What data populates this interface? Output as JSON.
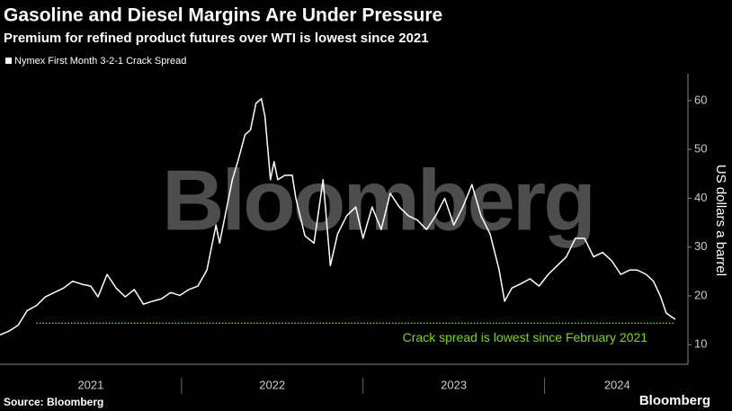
{
  "chart_data": {
    "type": "line",
    "title": "Gasoline and Diesel Margins Are Under Pressure",
    "subtitle": "Premium for refined product futures over WTI is lowest since 2021",
    "y_label": "US dollars a barrel",
    "watermark": "Bloomberg",
    "source": "Source: Bloomberg",
    "logo": "Bloomberg",
    "annotation": {
      "text": "Crack spread is lowest since February 2021",
      "value": 14.4,
      "xrange": [
        2021.2,
        2024.72
      ],
      "color": "#7ed321"
    },
    "xlim": [
      2021,
      2024.79
    ],
    "xticks": [
      {
        "value": 2021.5,
        "label": "2021"
      },
      {
        "value": 2022.5,
        "label": "2022"
      },
      {
        "value": 2023.5,
        "label": "2023"
      },
      {
        "value": 2024.4,
        "label": "2024"
      }
    ],
    "xminorticks": [
      2022,
      2023,
      2024
    ],
    "ylim": [
      6,
      65.5
    ],
    "yticks": [
      10,
      20,
      30,
      40,
      50,
      60
    ],
    "x": [
      2021.0,
      2021.05,
      2021.1,
      2021.15,
      2021.2,
      2021.25,
      2021.3,
      2021.35,
      2021.4,
      2021.45,
      2021.5,
      2021.54,
      2021.59,
      2021.64,
      2021.69,
      2021.74,
      2021.79,
      2021.84,
      2021.89,
      2021.94,
      2021.99,
      2022.04,
      2022.09,
      2022.14,
      2022.19,
      2022.21,
      2022.24,
      2022.28,
      2022.31,
      2022.35,
      2022.38,
      2022.41,
      2022.44,
      2022.46,
      2022.49,
      2022.51,
      2022.53,
      2022.57,
      2022.61,
      2022.63,
      2022.68,
      2022.73,
      2022.78,
      2022.82,
      2022.86,
      2022.91,
      2022.96,
      2023.0,
      2023.05,
      2023.1,
      2023.15,
      2023.2,
      2023.25,
      2023.3,
      2023.35,
      2023.4,
      2023.45,
      2023.5,
      2023.55,
      2023.6,
      2023.65,
      2023.7,
      2023.75,
      2023.78,
      2023.82,
      2023.87,
      2023.92,
      2023.97,
      2024.02,
      2024.07,
      2024.12,
      2024.17,
      2024.22,
      2024.27,
      2024.32,
      2024.37,
      2024.42,
      2024.47,
      2024.51,
      2024.56,
      2024.6,
      2024.64,
      2024.67,
      2024.7,
      2024.72
    ],
    "series": [
      {
        "name": "Nymex First Month 3-2-1 Crack Spread",
        "color": "#ffffff",
        "values": [
          12,
          12.8,
          14,
          17,
          18,
          19.8,
          20.7,
          21.6,
          23,
          22.4,
          22,
          19.8,
          24.4,
          21.6,
          19.8,
          21.3,
          18.3,
          18.9,
          19.4,
          20.7,
          20.1,
          21.3,
          22,
          25.3,
          34.5,
          30.8,
          36.4,
          43.8,
          47.5,
          53,
          54,
          59.4,
          60.4,
          56.7,
          43.8,
          47.5,
          43.8,
          44.7,
          44.7,
          40,
          32.3,
          30.8,
          43.8,
          26.2,
          32.7,
          36.4,
          38.2,
          31.8,
          38.2,
          33.6,
          41,
          38.2,
          36.4,
          35.5,
          33.6,
          36.4,
          40,
          34.5,
          38.2,
          42.8,
          36.4,
          32.7,
          25.3,
          18.9,
          21.6,
          22.5,
          23.5,
          22,
          24.4,
          26.2,
          28,
          31.8,
          31.8,
          28,
          28.9,
          27.2,
          24.4,
          25.3,
          25.3,
          24.4,
          23,
          19.8,
          16.5,
          15.7,
          15.2
        ]
      }
    ]
  }
}
